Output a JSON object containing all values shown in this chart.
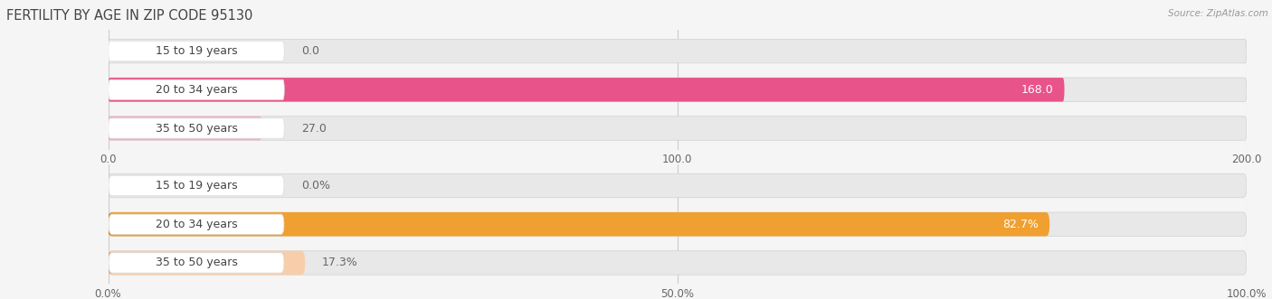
{
  "title": "FERTILITY BY AGE IN ZIP CODE 95130",
  "source": "Source: ZipAtlas.com",
  "top_chart": {
    "categories": [
      "15 to 19 years",
      "20 to 34 years",
      "35 to 50 years"
    ],
    "values": [
      0.0,
      168.0,
      27.0
    ],
    "xlim": [
      0,
      200
    ],
    "xticks": [
      0.0,
      100.0,
      200.0
    ],
    "bar_colors": [
      "#f2a0bb",
      "#e8538a",
      "#f0afc8"
    ],
    "dark_cap_colors": [
      "#e8849f",
      "#d44070",
      "#e090a8"
    ],
    "track_color": "#e8e8e8",
    "label_inside_color": "#ffffff",
    "label_outside_color": "#666666",
    "label_inside_threshold": 150.0
  },
  "bottom_chart": {
    "categories": [
      "15 to 19 years",
      "20 to 34 years",
      "35 to 50 years"
    ],
    "values": [
      0.0,
      82.7,
      17.3
    ],
    "xlim": [
      0,
      100
    ],
    "xticks": [
      0.0,
      50.0,
      100.0
    ],
    "xtick_labels": [
      "0.0%",
      "50.0%",
      "100.0%"
    ],
    "bar_colors": [
      "#f5c88a",
      "#f0a030",
      "#f8ceaa"
    ],
    "dark_cap_colors": [
      "#e0aa60",
      "#d48018",
      "#e0aa80"
    ],
    "track_color": "#e8e8e8",
    "label_inside_color": "#ffffff",
    "label_outside_color": "#666666",
    "label_inside_threshold": 80.0
  },
  "background_color": "#f5f5f5",
  "bar_height": 0.62,
  "label_fontsize": 9,
  "tick_fontsize": 8.5,
  "title_fontsize": 10.5,
  "category_fontsize": 9
}
